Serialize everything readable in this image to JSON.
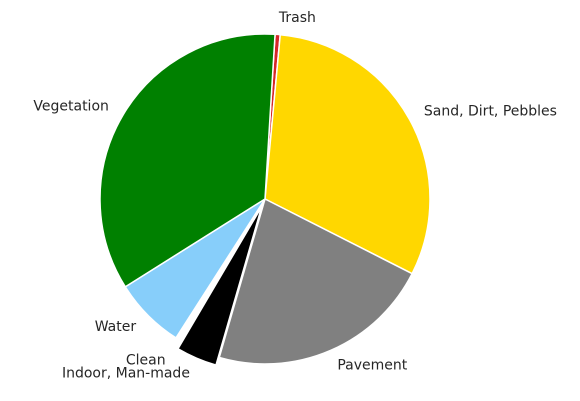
{
  "chart_data": {
    "type": "pie",
    "title": "",
    "labels": [
      "Trash",
      "Sand, Dirt, Pebbles",
      "Pavement",
      "Indoor, Man-made",
      "Clean",
      "Water",
      "Vegetation"
    ],
    "values": [
      0.5,
      31.0,
      22.0,
      4.0,
      0.6,
      7.0,
      34.9
    ],
    "colors": [
      "#d62728",
      "#ffd700",
      "#808080",
      "#000000",
      "#ffffff",
      "#87cefa",
      "#008000"
    ],
    "start_angle_deg": 86.5,
    "direction": "clockwise",
    "explode": [
      0,
      0,
      0,
      0.05,
      0.05,
      0,
      0
    ],
    "legend": "none",
    "grid": false
  }
}
